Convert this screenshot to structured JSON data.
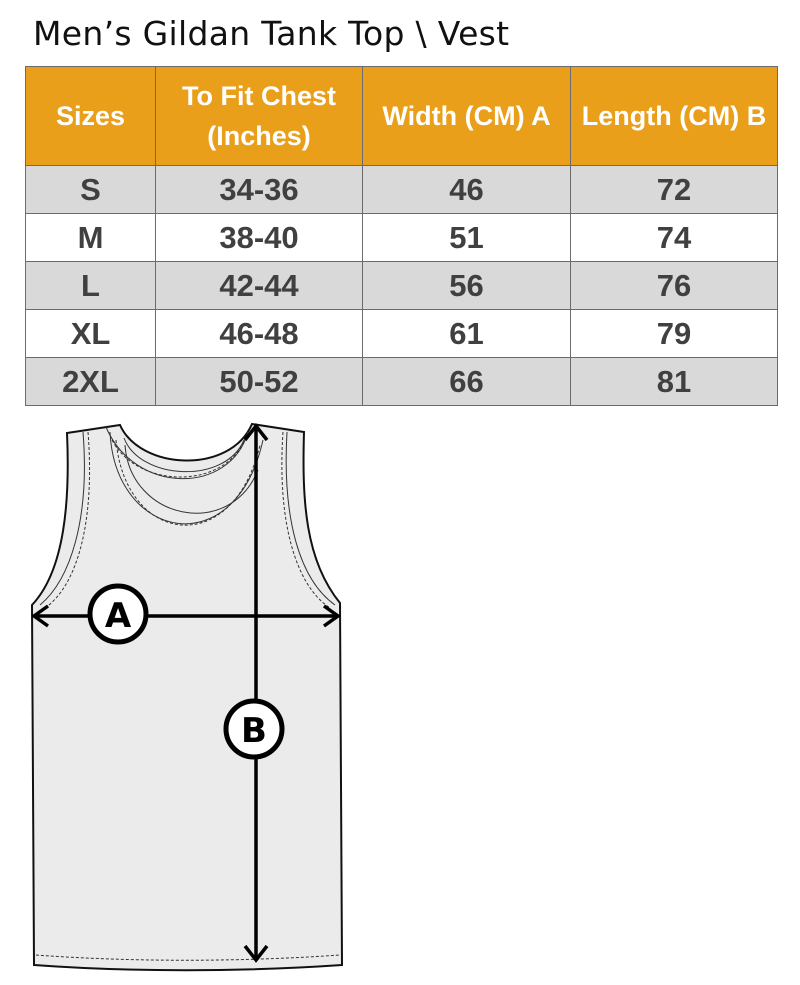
{
  "title": "Men’s Gildan Tank Top \\ Vest",
  "table": {
    "headers": [
      "Sizes",
      "To Fit Chest (Inches)",
      "Width (CM) A",
      "Length  (CM) B"
    ],
    "rows": [
      [
        "S",
        "34-36",
        "46",
        "72"
      ],
      [
        "M",
        "38-40",
        "51",
        "74"
      ],
      [
        "L",
        "42-44",
        "56",
        "76"
      ],
      [
        "XL",
        "46-48",
        "61",
        "79"
      ],
      [
        "2XL",
        "50-52",
        "66",
        "81"
      ]
    ]
  },
  "diagram": {
    "label_a": "A",
    "label_b": "B"
  },
  "colors": {
    "header": "#EA9F1A",
    "stripe": "#D9D9D9",
    "text": "#404040"
  }
}
